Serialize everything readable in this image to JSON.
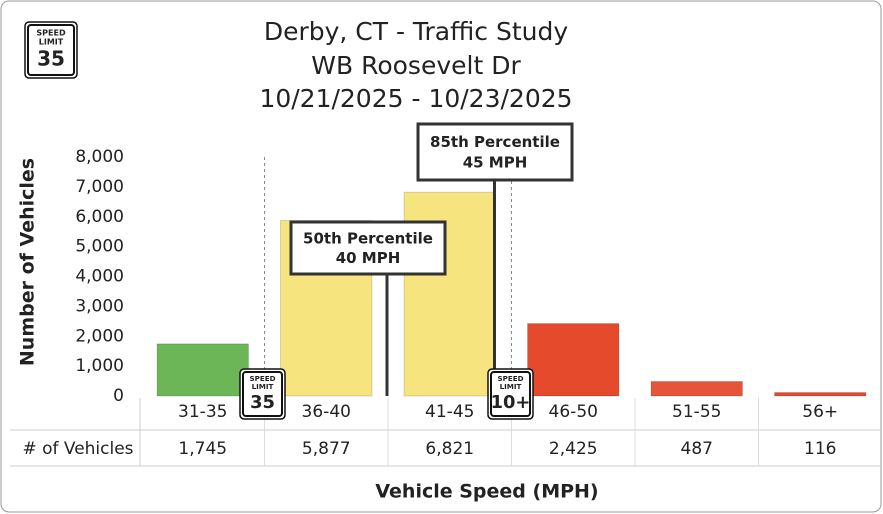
{
  "chart_data": {
    "type": "bar",
    "title": "Derby, CT - Traffic Study",
    "subtitle": [
      "WB Roosevelt Dr",
      "10/21/2025 - 10/23/2025"
    ],
    "y_label": "Number of Vehicles",
    "x_label": "Vehicle Speed (MPH)",
    "table_row_label": "# of Vehicles",
    "categories": [
      "31-35",
      "36-40",
      "41-45",
      "46-50",
      "51-55",
      "56+"
    ],
    "values": [
      1745,
      5877,
      6821,
      2425,
      487,
      116
    ],
    "value_labels": [
      "1,745",
      "5,877",
      "6,821",
      "2,425",
      "487",
      "116"
    ],
    "colors": [
      "#6db657",
      "#f6e47e",
      "#f6e47e",
      "#e54a2c",
      "#e6553a",
      "#e24a2f"
    ],
    "ylim": [
      0,
      8000
    ],
    "yticks": [
      0,
      {
        "value": 1000,
        "label": "1,000"
      },
      {
        "value": 2000,
        "label": "2,000"
      },
      {
        "value": 3000,
        "label": "3,000"
      },
      {
        "value": 4000,
        "label": "4,000"
      },
      {
        "value": 5000,
        "label": "5,000"
      },
      {
        "value": 6000,
        "label": "6,000"
      },
      {
        "value": 7000,
        "label": "7,000"
      },
      {
        "value": 8000,
        "label": "8,000"
      }
    ],
    "annotations": [
      {
        "lines": [
          "50th Percentile",
          "40 MPH"
        ]
      },
      {
        "lines": [
          "85th Percentile",
          "45 MPH"
        ]
      }
    ],
    "speed_signs": [
      {
        "top": "SPEED",
        "middle": "LIMIT",
        "number": "35"
      },
      {
        "top": "SPEED",
        "middle": "LIMIT",
        "number": "35"
      },
      {
        "top": "SPEED",
        "middle": "LIMIT",
        "number": "10+"
      }
    ]
  }
}
